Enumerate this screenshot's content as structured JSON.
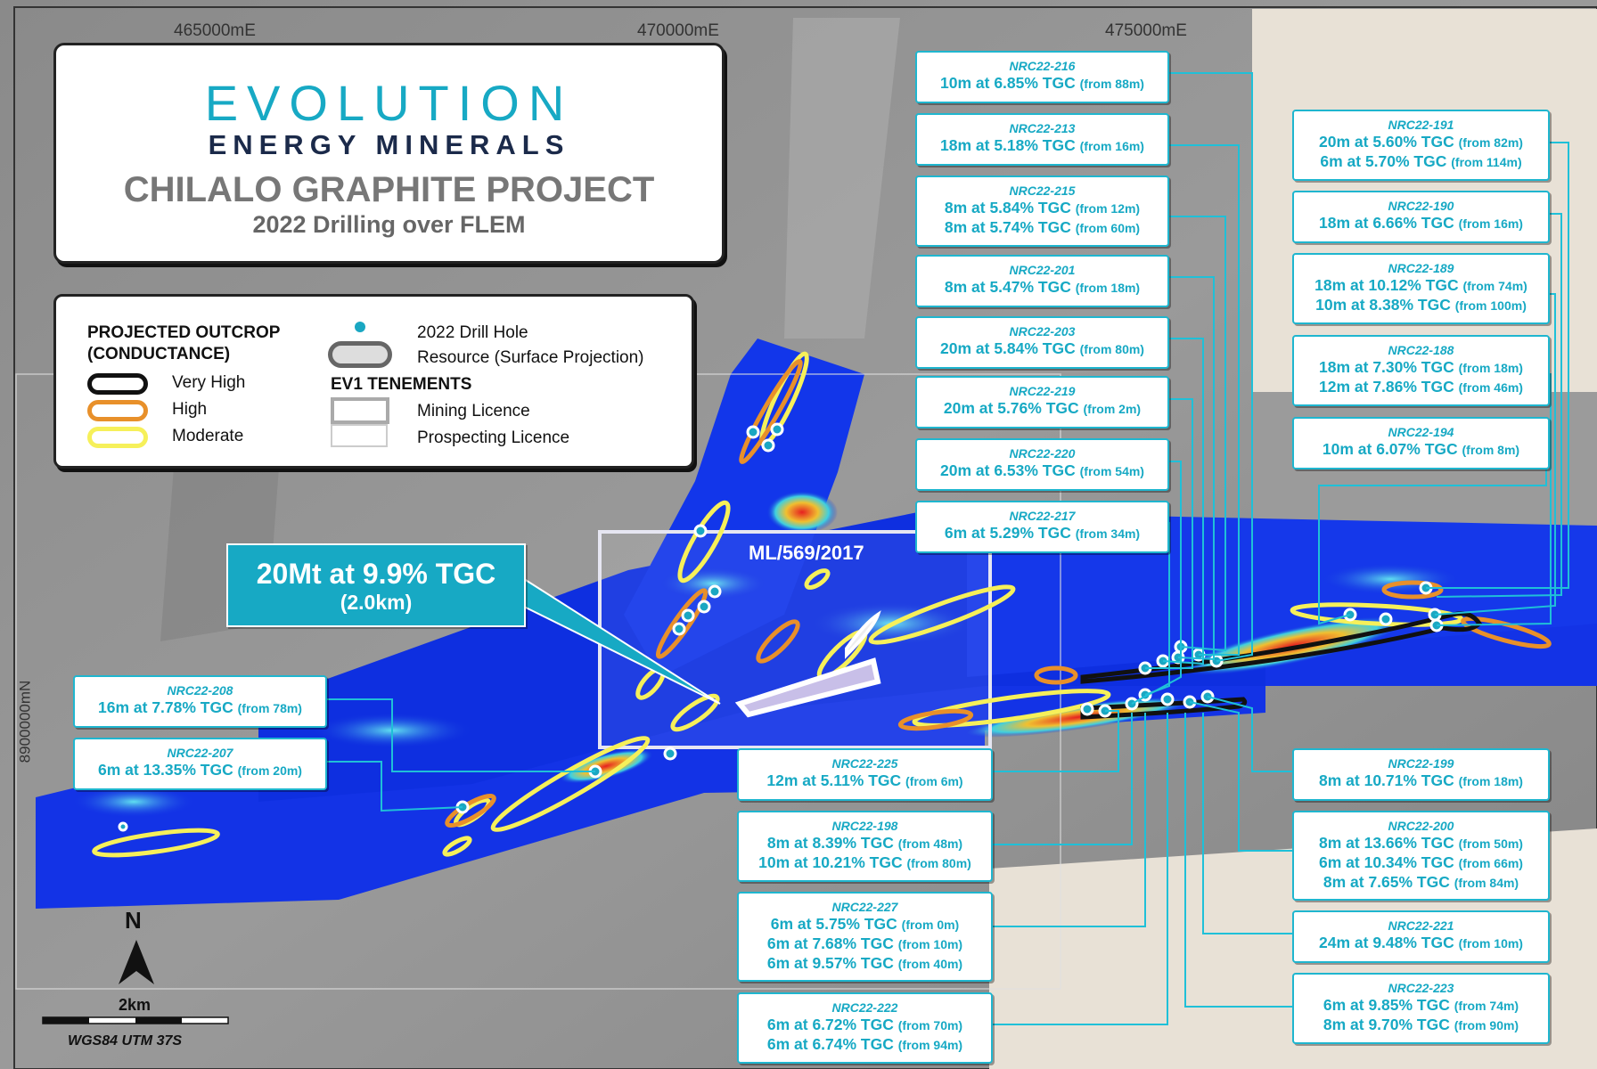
{
  "logo": {
    "brand": "EVOLUTION",
    "subbrand": "ENERGY MINERALS",
    "project": "CHILALO GRAPHITE PROJECT",
    "subtitle": "2022 Drilling over FLEM"
  },
  "grid": {
    "x_labels": [
      "465000mE",
      "470000mE",
      "475000mE"
    ],
    "y_label": "8900000mN"
  },
  "legend": {
    "outcrop_title_1": "PROJECTED OUTCROP",
    "outcrop_title_2": "(CONDUCTANCE)",
    "very_high": "Very High",
    "high": "High",
    "moderate": "Moderate",
    "drill_hole": "2022 Drill Hole",
    "resource": "Resource (Surface Projection)",
    "tenements_title": "EV1 TENEMENTS",
    "mining": "Mining Licence",
    "prospecting": "Prospecting Licence",
    "colors": {
      "very_high": "#111111",
      "high": "#e8902a",
      "moderate": "#f5ef5a",
      "drill_hole": "#1aa7c2"
    }
  },
  "resource_callout": {
    "line1": "20Mt at 9.9% TGC",
    "line2": "(2.0km)"
  },
  "licence_label": "ML/569/2017",
  "scale": {
    "north": "N",
    "distance": "2km",
    "datum": "WGS84 UTM 37S"
  },
  "callouts": [
    {
      "hole": "NRC22-216",
      "results": [
        [
          "10m at 6.85% TGC",
          "(from 88m)"
        ]
      ]
    },
    {
      "hole": "NRC22-213",
      "results": [
        [
          "18m at 5.18% TGC",
          "(from 16m)"
        ]
      ]
    },
    {
      "hole": "NRC22-215",
      "results": [
        [
          "8m at 5.84% TGC",
          "(from 12m)"
        ],
        [
          "8m at 5.74% TGC",
          "(from 60m)"
        ]
      ]
    },
    {
      "hole": "NRC22-201",
      "results": [
        [
          "8m at 5.47% TGC",
          "(from 18m)"
        ]
      ]
    },
    {
      "hole": "NRC22-203",
      "results": [
        [
          "20m at 5.84% TGC",
          "(from 80m)"
        ]
      ]
    },
    {
      "hole": "NRC22-219",
      "results": [
        [
          "20m at 5.76% TGC",
          "(from 2m)"
        ]
      ]
    },
    {
      "hole": "NRC22-220",
      "results": [
        [
          "20m at 6.53% TGC",
          "(from 54m)"
        ]
      ]
    },
    {
      "hole": "NRC22-217",
      "results": [
        [
          "6m at 5.29% TGC",
          "(from 34m)"
        ]
      ]
    },
    {
      "hole": "NRC22-191",
      "results": [
        [
          "20m at 5.60% TGC",
          "(from 82m)"
        ],
        [
          "6m at 5.70% TGC",
          "(from 114m)"
        ]
      ]
    },
    {
      "hole": "NRC22-190",
      "results": [
        [
          "18m at 6.66% TGC",
          "(from 16m)"
        ]
      ]
    },
    {
      "hole": "NRC22-189",
      "results": [
        [
          "18m at 10.12% TGC",
          "(from 74m)"
        ],
        [
          "10m at 8.38% TGC",
          "(from 100m)"
        ]
      ]
    },
    {
      "hole": "NRC22-188",
      "results": [
        [
          "18m at 7.30% TGC",
          "(from 18m)"
        ],
        [
          "12m at 7.86% TGC",
          "(from 46m)"
        ]
      ]
    },
    {
      "hole": "NRC22-194",
      "results": [
        [
          "10m at 6.07% TGC",
          "(from 8m)"
        ]
      ]
    },
    {
      "hole": "NRC22-208",
      "results": [
        [
          "16m at 7.78% TGC",
          "(from 78m)"
        ]
      ]
    },
    {
      "hole": "NRC22-207",
      "results": [
        [
          "6m at 13.35% TGC",
          "(from 20m)"
        ]
      ]
    },
    {
      "hole": "NRC22-225",
      "results": [
        [
          "12m at 5.11% TGC",
          "(from 6m)"
        ]
      ]
    },
    {
      "hole": "NRC22-198",
      "results": [
        [
          "8m at 8.39% TGC",
          "(from 48m)"
        ],
        [
          "10m at 10.21% TGC",
          "(from 80m)"
        ]
      ]
    },
    {
      "hole": "NRC22-227",
      "results": [
        [
          "6m at 5.75% TGC",
          "(from 0m)"
        ],
        [
          "6m at 7.68% TGC",
          "(from 10m)"
        ],
        [
          "6m at 9.57% TGC",
          "(from 40m)"
        ]
      ]
    },
    {
      "hole": "NRC22-222",
      "results": [
        [
          "6m at 6.72% TGC",
          "(from 70m)"
        ],
        [
          "6m at 6.74% TGC",
          "(from 94m)"
        ]
      ]
    },
    {
      "hole": "NRC22-199",
      "results": [
        [
          "8m at 10.71% TGC",
          "(from 18m)"
        ]
      ]
    },
    {
      "hole": "NRC22-200",
      "results": [
        [
          "8m at 13.66% TGC",
          "(from 50m)"
        ],
        [
          "6m at 10.34% TGC",
          "(from 66m)"
        ],
        [
          "8m at 7.65% TGC",
          "(from 84m)"
        ]
      ]
    },
    {
      "hole": "NRC22-221",
      "results": [
        [
          "24m at 9.48% TGC",
          "(from 10m)"
        ]
      ]
    },
    {
      "hole": "NRC22-223",
      "results": [
        [
          "6m at 9.85% TGC",
          "(from 74m)"
        ],
        [
          "8m at 9.70% TGC",
          "(from 90m)"
        ]
      ]
    }
  ]
}
